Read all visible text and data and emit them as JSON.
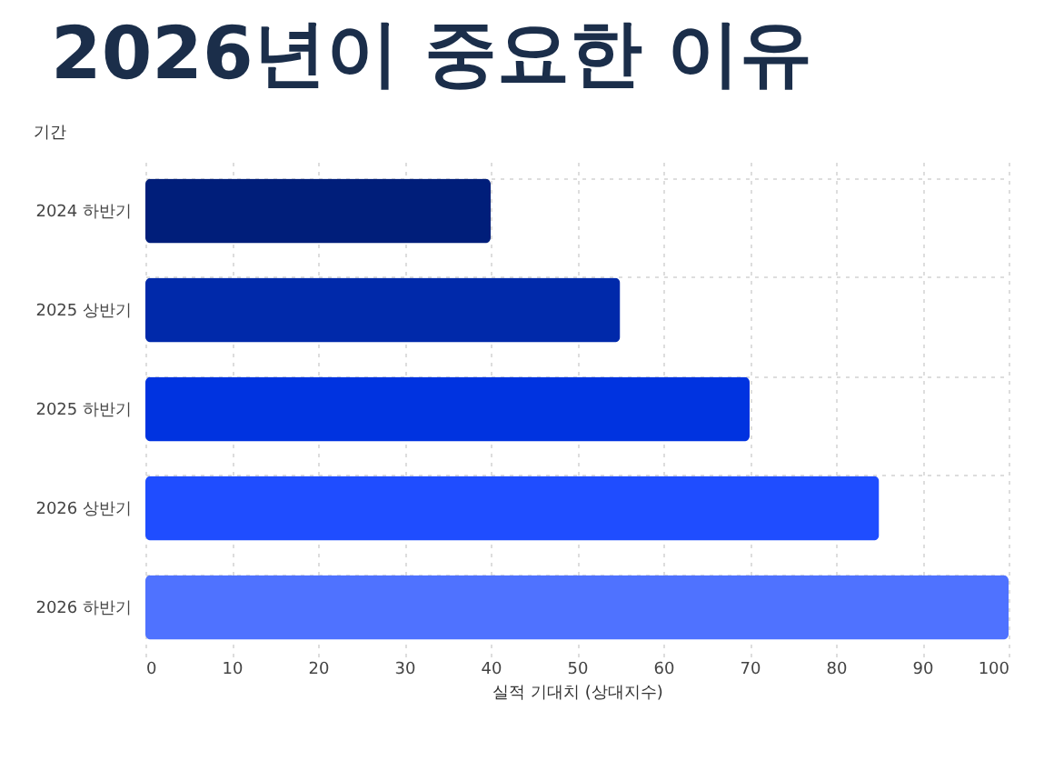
{
  "chart_data": {
    "type": "bar",
    "orientation": "horizontal",
    "title": "2026년이 중요한 이유",
    "xlabel": "실적 기대치 (상대지수)",
    "ylabel": "기간",
    "categories": [
      "2024 하반기",
      "2025 상반기",
      "2025 하반기",
      "2026 상반기",
      "2026 하반기"
    ],
    "values": [
      40,
      55,
      70,
      85,
      100
    ],
    "colors": [
      "#001e7a",
      "#0029aa",
      "#0033e0",
      "#1f4dff",
      "#4f72ff"
    ],
    "xlim": [
      0,
      100
    ],
    "xticks": [
      0,
      10,
      20,
      30,
      40,
      50,
      60,
      70,
      80,
      90,
      100
    ],
    "grid": true
  }
}
